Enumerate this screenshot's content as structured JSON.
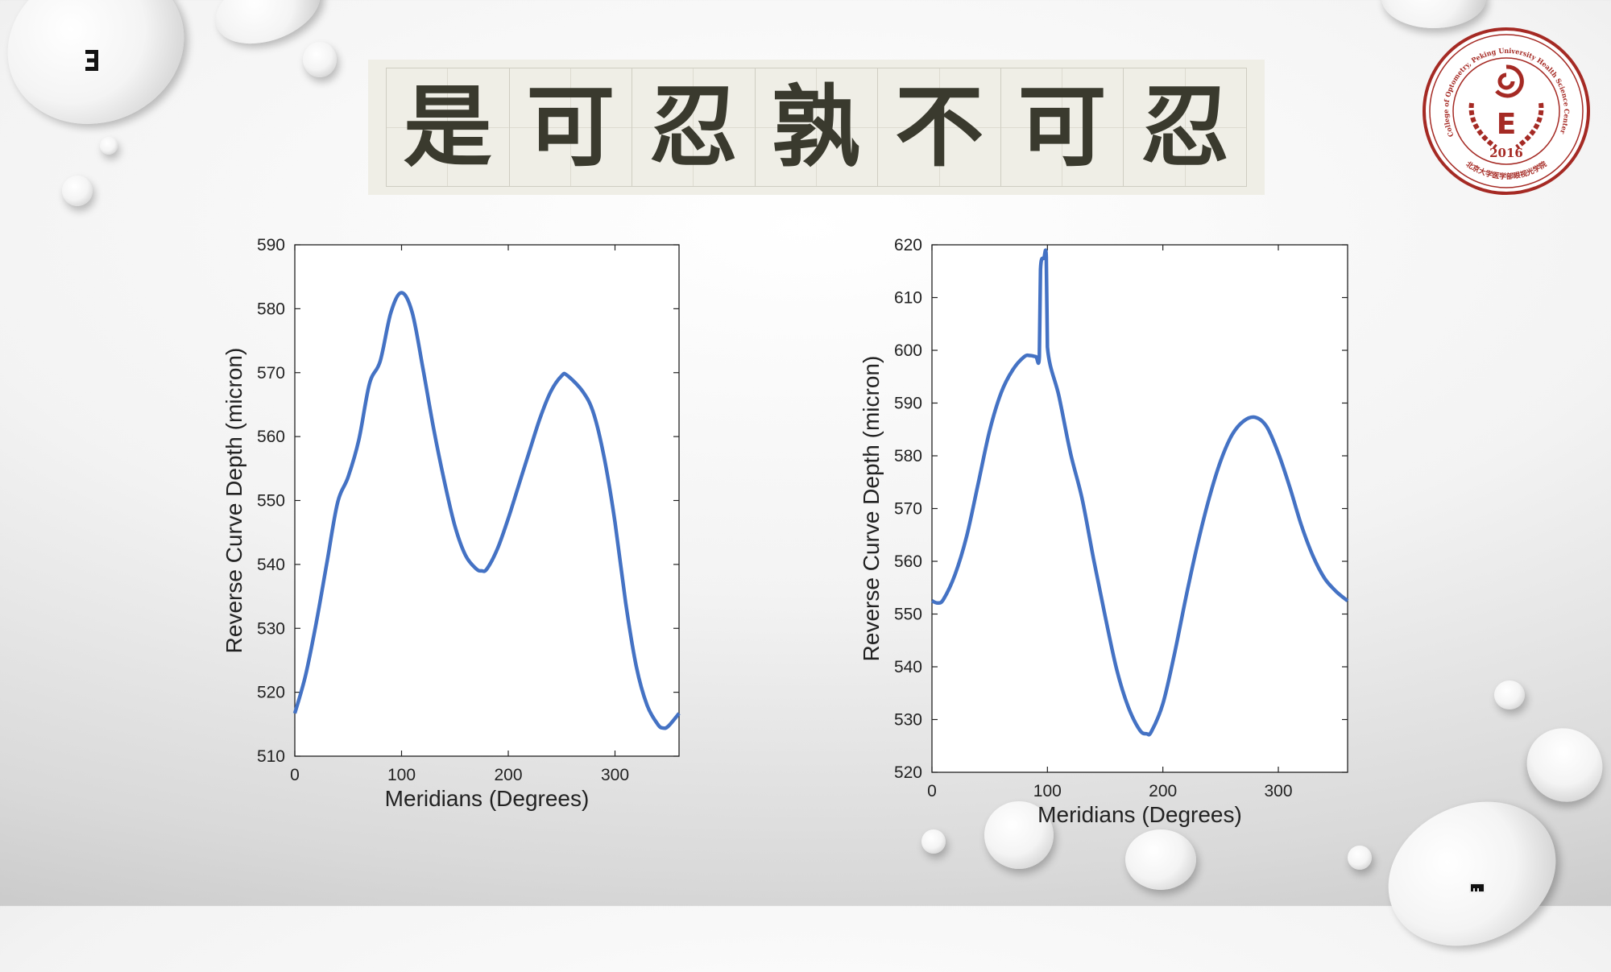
{
  "slide": {
    "banner_text": [
      "是",
      "可",
      "忍",
      "孰",
      "不",
      "可",
      "忍"
    ],
    "seal": {
      "outer_text": "College of Optometry, Peking University Health Science Center",
      "year": "2016",
      "chinese_text": "北京大学医学部眼视光学院",
      "center_letter": "E",
      "color": "#a52a24"
    },
    "decorations": {
      "top_left_icon": "tumbling-e-left-icon",
      "bottom_right_icon": "tumbling-e-down-icon"
    }
  },
  "chart_data": [
    {
      "type": "line",
      "title": "",
      "xlabel": "Meridians (Degrees)",
      "ylabel": "Reverse Curve Depth (micron)",
      "xlim": [
        0,
        360
      ],
      "ylim": [
        510,
        590
      ],
      "xticks": [
        0,
        100,
        200,
        300
      ],
      "yticks": [
        510,
        520,
        530,
        540,
        550,
        560,
        570,
        580,
        590
      ],
      "grid": false,
      "color": "#4472c4",
      "x": [
        0,
        10,
        20,
        30,
        40,
        50,
        60,
        70,
        80,
        90,
        100,
        110,
        120,
        130,
        140,
        150,
        160,
        170,
        175,
        180,
        190,
        200,
        210,
        220,
        230,
        240,
        250,
        255,
        270,
        280,
        290,
        300,
        310,
        320,
        330,
        340,
        345,
        350,
        360
      ],
      "y": [
        516.7,
        522.6,
        530.8,
        540.2,
        549.6,
        553.7,
        559.5,
        568.3,
        571.8,
        579.4,
        582.5,
        579.4,
        570.7,
        561.3,
        553.1,
        546,
        541.4,
        539.3,
        539,
        539.3,
        542.5,
        547.2,
        552.5,
        557.8,
        563,
        567.1,
        569.5,
        569.6,
        567,
        563.6,
        556.6,
        546.6,
        534,
        524,
        518,
        515,
        514.4,
        514.7,
        516.7
      ]
    },
    {
      "type": "line",
      "title": "",
      "xlabel": "Meridians (Degrees)",
      "ylabel": "Reverse Curve Depth (micron)",
      "xlim": [
        0,
        360
      ],
      "ylim": [
        520,
        620
      ],
      "xticks": [
        0,
        100,
        200,
        300
      ],
      "yticks": [
        520,
        530,
        540,
        550,
        560,
        570,
        580,
        590,
        600,
        610,
        620
      ],
      "grid": false,
      "color": "#4472c4",
      "x": [
        0,
        5,
        10,
        20,
        30,
        40,
        50,
        60,
        70,
        80,
        85,
        90,
        93,
        94,
        97,
        99,
        100,
        110,
        120,
        130,
        140,
        150,
        160,
        170,
        180,
        186,
        190,
        200,
        210,
        220,
        230,
        240,
        250,
        260,
        270,
        280,
        290,
        300,
        310,
        320,
        330,
        340,
        350,
        360
      ],
      "y": [
        552.5,
        552.1,
        552.8,
        557.5,
        564.7,
        574.7,
        584.8,
        592,
        596.3,
        598.8,
        599,
        598.8,
        598.8,
        615.3,
        617.5,
        617.7,
        600.6,
        591.3,
        580.5,
        571.9,
        560.4,
        549.6,
        539.5,
        532.4,
        528,
        527.3,
        527.7,
        533,
        542.4,
        553.2,
        563.2,
        571.9,
        579,
        584,
        586.6,
        587.3,
        585.5,
        580.5,
        574,
        566.8,
        561,
        556.8,
        554.3,
        552.5
      ]
    }
  ]
}
